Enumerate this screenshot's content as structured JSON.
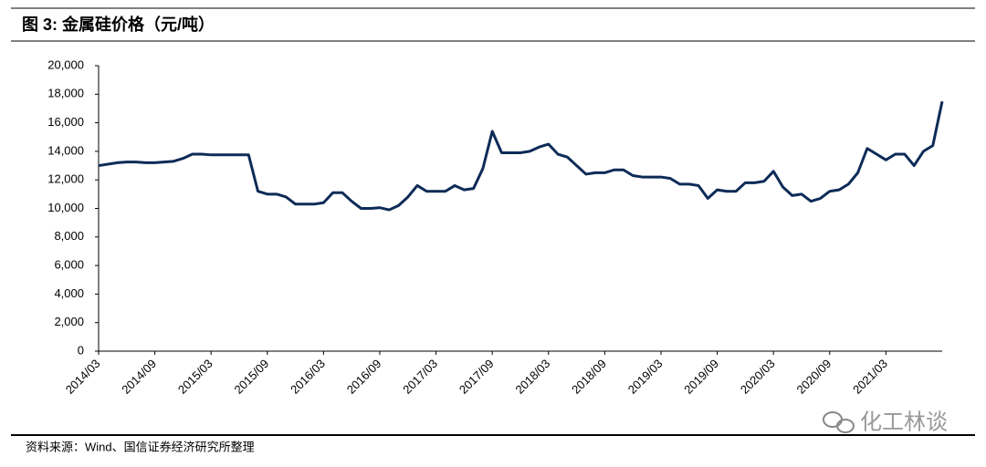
{
  "chart_data": {
    "type": "line",
    "title": "图 3: 金属硅价格（元/吨）",
    "source": "资料来源：Wind、国信证券经济研究所整理",
    "watermark": "化工林谈",
    "x": [
      "2014/03",
      "2014/04",
      "2014/05",
      "2014/06",
      "2014/07",
      "2014/08",
      "2014/09",
      "2014/10",
      "2014/11",
      "2014/12",
      "2015/01",
      "2015/02",
      "2015/03",
      "2015/04",
      "2015/05",
      "2015/06",
      "2015/07",
      "2015/08",
      "2015/09",
      "2015/10",
      "2015/11",
      "2015/12",
      "2016/01",
      "2016/02",
      "2016/03",
      "2016/04",
      "2016/05",
      "2016/06",
      "2016/07",
      "2016/08",
      "2016/09",
      "2016/10",
      "2016/11",
      "2016/12",
      "2017/01",
      "2017/02",
      "2017/03",
      "2017/04",
      "2017/05",
      "2017/06",
      "2017/07",
      "2017/08",
      "2017/09",
      "2017/10",
      "2017/11",
      "2017/12",
      "2018/01",
      "2018/02",
      "2018/03",
      "2018/04",
      "2018/05",
      "2018/06",
      "2018/07",
      "2018/08",
      "2018/09",
      "2018/10",
      "2018/11",
      "2018/12",
      "2019/01",
      "2019/02",
      "2019/03",
      "2019/04",
      "2019/05",
      "2019/06",
      "2019/07",
      "2019/08",
      "2019/09",
      "2019/10",
      "2019/11",
      "2019/12",
      "2020/01",
      "2020/02",
      "2020/03",
      "2020/04",
      "2020/05",
      "2020/06",
      "2020/07",
      "2020/08",
      "2020/09",
      "2020/10",
      "2020/11",
      "2020/12",
      "2021/01",
      "2021/02",
      "2021/03",
      "2021/04",
      "2021/05",
      "2021/06",
      "2021/07",
      "2021/08",
      "2021/09"
    ],
    "series": [
      {
        "color": "#0d2b57",
        "values": [
          13000,
          13100,
          13200,
          13250,
          13250,
          13200,
          13200,
          13250,
          13300,
          13500,
          13800,
          13800,
          13750,
          13750,
          13750,
          13750,
          13750,
          11200,
          11000,
          11000,
          10800,
          10300,
          10300,
          10300,
          10400,
          11100,
          11100,
          10500,
          10000,
          10000,
          10050,
          9900,
          10200,
          10800,
          11600,
          11200,
          11200,
          11200,
          11600,
          11300,
          11400,
          12800,
          15400,
          13900,
          13900,
          13900,
          14000,
          14300,
          14500,
          13800,
          13600,
          13000,
          12400,
          12500,
          12500,
          12700,
          12700,
          12300,
          12200,
          12200,
          12200,
          12100,
          11700,
          11700,
          11600,
          10700,
          11300,
          11200,
          11200,
          11800,
          11800,
          11900,
          12600,
          11500,
          10900,
          11000,
          10500,
          10700,
          11200,
          11300,
          11700,
          12500,
          14200,
          13800,
          13400,
          13800,
          13800,
          13000,
          14000,
          14400,
          17500
        ]
      }
    ],
    "xticks": [
      "2014/03",
      "2014/09",
      "2015/03",
      "2015/09",
      "2016/03",
      "2016/09",
      "2017/03",
      "2017/09",
      "2018/03",
      "2018/09",
      "2019/03",
      "2019/09",
      "2020/03",
      "2020/09",
      "2021/03"
    ],
    "ylim": [
      0,
      20000
    ],
    "yticks": [
      0,
      {
        "value": 2000,
        "label": "2,000"
      },
      {
        "value": 4000,
        "label": "4,000"
      },
      {
        "value": 6000,
        "label": "6,000"
      },
      {
        "value": 8000,
        "label": "8,000"
      },
      {
        "value": 10000,
        "label": "10,000"
      },
      {
        "value": 12000,
        "label": "12,000"
      },
      {
        "value": 14000,
        "label": "14,000"
      },
      {
        "value": 16000,
        "label": "16,000"
      },
      {
        "value": 18000,
        "label": "18,000"
      },
      {
        "value": 20000,
        "label": "20,000"
      }
    ]
  }
}
